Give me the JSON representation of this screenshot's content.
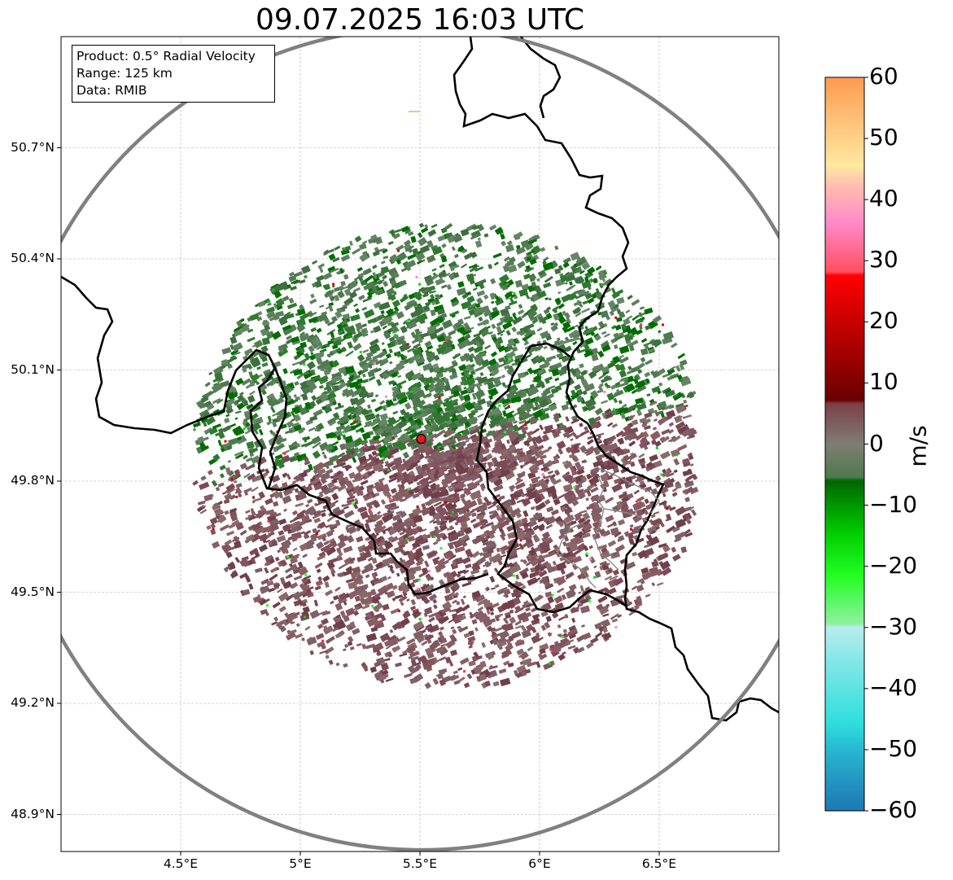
{
  "title": "09.07.2025 16:03 UTC",
  "info": {
    "product": "Product: 0.5° Radial Velocity",
    "range": "Range: 125 km",
    "source": "Data: RMIB"
  },
  "axes": {
    "lat_ticks": [
      "50.7°N",
      "50.4°N",
      "50.1°N",
      "49.8°N",
      "49.5°N",
      "49.2°N",
      "48.9°N"
    ],
    "lon_ticks": [
      "4.5°E",
      "5°E",
      "5.5°E",
      "6°E",
      "6.5°E"
    ],
    "grid": true,
    "extent": {
      "lon": [
        4.0,
        7.0
      ],
      "lat": [
        48.8,
        51.0
      ]
    }
  },
  "radar": {
    "lon": 5.505,
    "lat": 49.914,
    "range_km": 125,
    "marker_color": "#e41a1c"
  },
  "colorbar": {
    "label": "m/s",
    "ticks": [
      "60",
      "50",
      "40",
      "30",
      "20",
      "10",
      "0",
      "−10",
      "−20",
      "−30",
      "−40",
      "−50",
      "−60"
    ],
    "min": -60,
    "max": 60
  },
  "colors": {
    "approaching_green": "#5c7e5c",
    "receding_maroon": "#7a4a55",
    "border": "#000000",
    "range_ring": "#808080"
  }
}
